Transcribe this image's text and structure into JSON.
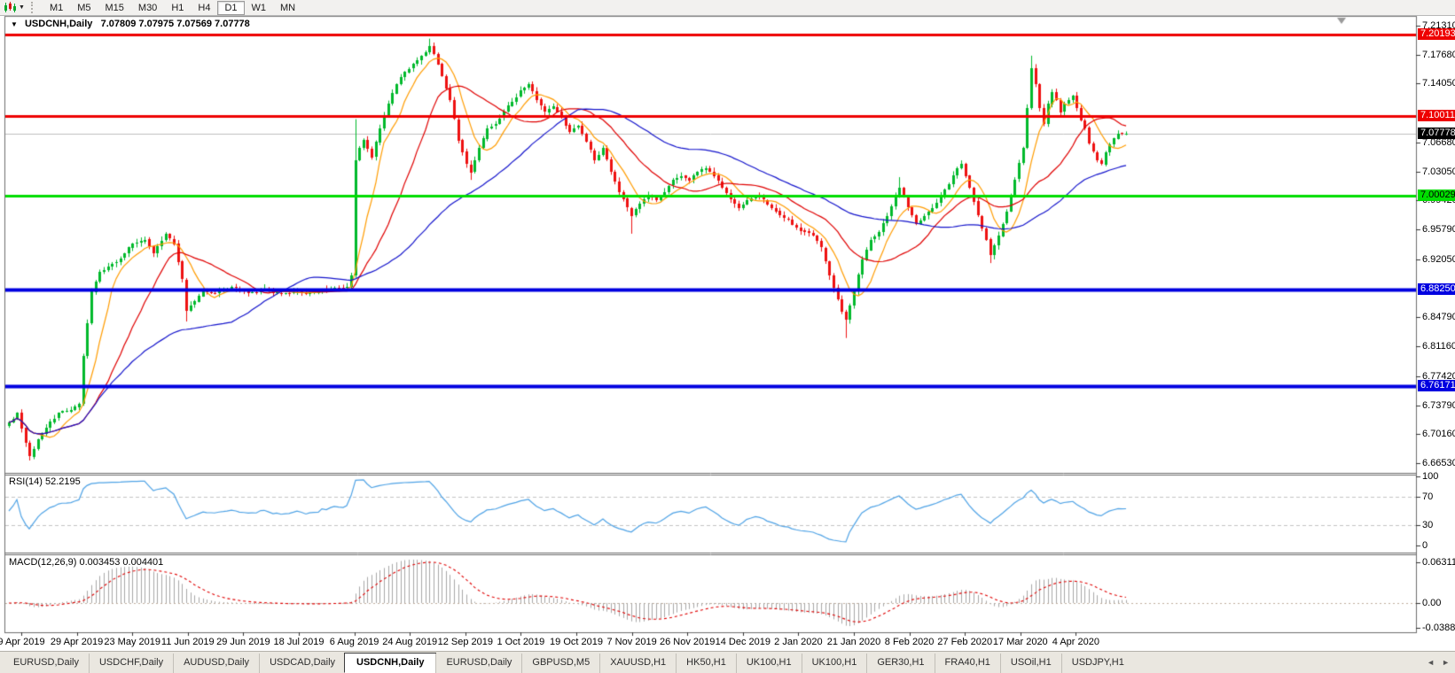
{
  "toolbar": {
    "timeframes": [
      {
        "label": "M1"
      },
      {
        "label": "M5"
      },
      {
        "label": "M15"
      },
      {
        "label": "M30"
      },
      {
        "label": "H1"
      },
      {
        "label": "H4"
      },
      {
        "label": "D1",
        "active": true
      },
      {
        "label": "W1"
      },
      {
        "label": "MN"
      }
    ],
    "active_timeframe": "D1"
  },
  "icons": {
    "toolbar_chart": "chart-type-icon",
    "toolbar_caret": "dropdown-caret-icon",
    "toolbar_caret_glyph": "▼",
    "title_caret": "collapse-triangle-icon",
    "title_caret_glyph": "▼",
    "tab_scroll_left_glyph": "◄",
    "tab_scroll_right_glyph": "►"
  },
  "chart_title": {
    "symbol": "USDCNH,Daily",
    "ohlc": "7.07809 7.07975 7.07569 7.07778"
  },
  "price_axis": {
    "ticks": [
      "7.21310",
      "7.17680",
      "7.14050",
      "7.06680",
      "7.03050",
      "6.99420",
      "6.95790",
      "6.92050",
      "6.84790",
      "6.81160",
      "6.77420",
      "6.73790",
      "6.70160",
      "6.66530"
    ],
    "badges": [
      {
        "value": "7.20193",
        "price": 7.20193,
        "bg": "#ee0000",
        "fg": "#ffffff"
      },
      {
        "value": "7.10011",
        "price": 7.10011,
        "bg": "#ee0000",
        "fg": "#ffffff"
      },
      {
        "value": "7.07778",
        "price": 7.07778,
        "bg": "#000000",
        "fg": "#ffffff"
      },
      {
        "value": "7.00029",
        "price": 7.00029,
        "bg": "#00dd00",
        "fg": "#000000"
      },
      {
        "value": "6.88250",
        "price": 6.8825,
        "bg": "#0000e0",
        "fg": "#ffffff"
      },
      {
        "value": "6.76171",
        "price": 6.76171,
        "bg": "#0000e0",
        "fg": "#ffffff"
      }
    ]
  },
  "time_axis": {
    "labels": [
      "9 Apr 2019",
      "29 Apr 2019",
      "23 May 2019",
      "11 Jun 2019",
      "29 Jun 2019",
      "18 Jul 2019",
      "6 Aug 2019",
      "24 Aug 2019",
      "12 Sep 2019",
      "1 Oct 2019",
      "19 Oct 2019",
      "7 Nov 2019",
      "26 Nov 2019",
      "14 Dec 2019",
      "2 Jan 2020",
      "21 Jan 2020",
      "8 Feb 2020",
      "27 Feb 2020",
      "17 Mar 2020",
      "4 Apr 2020"
    ]
  },
  "rsi": {
    "label": "RSI(14) 52.2195",
    "value": 52.2195,
    "period": 14,
    "axis": [
      100,
      70,
      30,
      0
    ],
    "levels": [
      70,
      30
    ],
    "color": "#4fa3e6"
  },
  "macd": {
    "label": "MACD(12,26,9) 0.003453 0.004401",
    "values": [
      0.003453,
      0.004401
    ],
    "params": [
      12,
      26,
      9
    ],
    "axis": [
      {
        "text": "0.063113",
        "v": 0.063113
      },
      {
        "text": "0.00",
        "v": 0
      },
      {
        "text": "-0.038872",
        "v": -0.038872
      }
    ],
    "histogram_color": "#a8a8a8",
    "signal_color": "#e00000"
  },
  "tabs": {
    "items": [
      {
        "label": "EURUSD,Daily"
      },
      {
        "label": "USDCHF,Daily"
      },
      {
        "label": "AUDUSD,Daily"
      },
      {
        "label": "USDCAD,Daily"
      },
      {
        "label": "USDCNH,Daily",
        "active": true
      },
      {
        "label": "EURUSD,Daily"
      },
      {
        "label": "GBPUSD,M5"
      },
      {
        "label": "XAUUSD,H1"
      },
      {
        "label": "HK50,H1"
      },
      {
        "label": "UK100,H1"
      },
      {
        "label": "UK100,H1"
      },
      {
        "label": "GER30,H1"
      },
      {
        "label": "FRA40,H1"
      },
      {
        "label": "USOil,H1"
      },
      {
        "label": "USDJPY,H1"
      }
    ]
  },
  "chart_data": {
    "type": "candlestick",
    "symbol": "USDCNH",
    "timeframe": "Daily",
    "ohlc_display": {
      "open": 7.07809,
      "high": 7.07975,
      "low": 7.07569,
      "close": 7.07778
    },
    "current_price": 7.07778,
    "num_candles": 272,
    "date_range": [
      "9 Apr 2019",
      "17 Apr 2020"
    ],
    "price_range_visible": [
      6.6653,
      7.2131
    ],
    "up_color": "#00b92b",
    "down_color": "#ee1111",
    "current_price_line_color": "#c0c0c0",
    "horizontal_lines": [
      {
        "price": 7.20193,
        "color": "#ee0000",
        "width": 3
      },
      {
        "price": 7.10011,
        "color": "#ee0000",
        "width": 3
      },
      {
        "price": 7.00029,
        "color": "#00dd00",
        "width": 3
      },
      {
        "price": 6.8825,
        "color": "#0000e0",
        "width": 4
      },
      {
        "price": 6.76171,
        "color": "#0000e0",
        "width": 4
      }
    ],
    "moving_averages": [
      {
        "period": 8,
        "color": "#ff9c00"
      },
      {
        "period": 21,
        "color": "#e00000"
      },
      {
        "period": 55,
        "color": "#1414cc"
      }
    ],
    "price_anchors": [
      [
        0,
        6.716
      ],
      [
        2,
        6.728
      ],
      [
        4,
        6.69
      ],
      [
        5,
        6.674
      ],
      [
        7,
        6.695
      ],
      [
        9,
        6.71
      ],
      [
        12,
        6.728
      ],
      [
        15,
        6.732
      ],
      [
        17,
        6.74
      ],
      [
        18,
        6.8
      ],
      [
        20,
        6.88
      ],
      [
        22,
        6.905
      ],
      [
        24,
        6.912
      ],
      [
        27,
        6.922
      ],
      [
        30,
        6.94
      ],
      [
        33,
        6.945
      ],
      [
        35,
        6.928
      ],
      [
        38,
        6.952
      ],
      [
        40,
        6.94
      ],
      [
        42,
        6.895
      ],
      [
        43,
        6.856
      ],
      [
        45,
        6.868
      ],
      [
        47,
        6.882
      ],
      [
        50,
        6.878
      ],
      [
        54,
        6.886
      ],
      [
        58,
        6.879
      ],
      [
        62,
        6.884
      ],
      [
        66,
        6.877
      ],
      [
        70,
        6.881
      ],
      [
        74,
        6.879
      ],
      [
        78,
        6.884
      ],
      [
        82,
        6.886
      ],
      [
        83,
        6.9
      ],
      [
        84,
        7.045
      ],
      [
        85,
        7.06
      ],
      [
        86,
        7.07
      ],
      [
        88,
        7.048
      ],
      [
        90,
        7.085
      ],
      [
        92,
        7.115
      ],
      [
        94,
        7.14
      ],
      [
        96,
        7.155
      ],
      [
        98,
        7.165
      ],
      [
        100,
        7.175
      ],
      [
        102,
        7.188
      ],
      [
        103,
        7.178
      ],
      [
        105,
        7.15
      ],
      [
        107,
        7.12
      ],
      [
        109,
        7.07
      ],
      [
        111,
        7.04
      ],
      [
        112,
        7.03
      ],
      [
        114,
        7.06
      ],
      [
        116,
        7.085
      ],
      [
        118,
        7.09
      ],
      [
        120,
        7.105
      ],
      [
        122,
        7.118
      ],
      [
        124,
        7.132
      ],
      [
        126,
        7.14
      ],
      [
        128,
        7.12
      ],
      [
        130,
        7.105
      ],
      [
        132,
        7.112
      ],
      [
        134,
        7.098
      ],
      [
        136,
        7.08
      ],
      [
        138,
        7.088
      ],
      [
        140,
        7.068
      ],
      [
        142,
        7.045
      ],
      [
        144,
        7.06
      ],
      [
        146,
        7.03
      ],
      [
        148,
        7.005
      ],
      [
        150,
        6.985
      ],
      [
        151,
        6.975
      ],
      [
        153,
        6.99
      ],
      [
        155,
        7.0
      ],
      [
        157,
        6.995
      ],
      [
        159,
        7.005
      ],
      [
        161,
        7.02
      ],
      [
        163,
        7.025
      ],
      [
        165,
        7.02
      ],
      [
        167,
        7.03
      ],
      [
        169,
        7.035
      ],
      [
        171,
        7.025
      ],
      [
        173,
        7.01
      ],
      [
        175,
        6.995
      ],
      [
        177,
        6.985
      ],
      [
        179,
        6.995
      ],
      [
        181,
        7.0
      ],
      [
        183,
        6.995
      ],
      [
        185,
        6.985
      ],
      [
        187,
        6.975
      ],
      [
        189,
        6.97
      ],
      [
        191,
        6.96
      ],
      [
        193,
        6.955
      ],
      [
        195,
        6.95
      ],
      [
        197,
        6.935
      ],
      [
        199,
        6.9
      ],
      [
        201,
        6.87
      ],
      [
        202,
        6.855
      ],
      [
        203,
        6.845
      ],
      [
        205,
        6.88
      ],
      [
        207,
        6.92
      ],
      [
        209,
        6.945
      ],
      [
        211,
        6.955
      ],
      [
        213,
        6.975
      ],
      [
        215,
        7.0
      ],
      [
        216,
        7.01
      ],
      [
        218,
        6.985
      ],
      [
        220,
        6.965
      ],
      [
        222,
        6.975
      ],
      [
        224,
        6.985
      ],
      [
        226,
        7.0
      ],
      [
        228,
        7.015
      ],
      [
        230,
        7.035
      ],
      [
        231,
        7.04
      ],
      [
        233,
        7.01
      ],
      [
        235,
        6.975
      ],
      [
        237,
        6.945
      ],
      [
        238,
        6.925
      ],
      [
        240,
        6.95
      ],
      [
        242,
        6.98
      ],
      [
        244,
        7.02
      ],
      [
        246,
        7.06
      ],
      [
        247,
        7.11
      ],
      [
        248,
        7.16
      ],
      [
        249,
        7.14
      ],
      [
        250,
        7.11
      ],
      [
        251,
        7.09
      ],
      [
        252,
        7.115
      ],
      [
        253,
        7.13
      ],
      [
        254,
        7.12
      ],
      [
        255,
        7.105
      ],
      [
        256,
        7.115
      ],
      [
        257,
        7.12
      ],
      [
        258,
        7.125
      ],
      [
        259,
        7.11
      ],
      [
        260,
        7.095
      ],
      [
        261,
        7.085
      ],
      [
        262,
        7.065
      ],
      [
        263,
        7.055
      ],
      [
        264,
        7.045
      ],
      [
        265,
        7.04
      ],
      [
        266,
        7.055
      ],
      [
        267,
        7.065
      ],
      [
        269,
        7.078
      ],
      [
        271,
        7.07778
      ]
    ],
    "wick_events": {
      "5": [
        0,
        0.004
      ],
      "43": [
        0,
        0.01
      ],
      "84": [
        0.05,
        0
      ],
      "102": [
        0.006,
        0
      ],
      "112": [
        0,
        0.008
      ],
      "151": [
        0,
        0.02
      ],
      "203": [
        0,
        0.018
      ],
      "216": [
        0.01,
        0
      ],
      "238": [
        0,
        0.006
      ],
      "248": [
        0.012,
        0
      ]
    }
  }
}
